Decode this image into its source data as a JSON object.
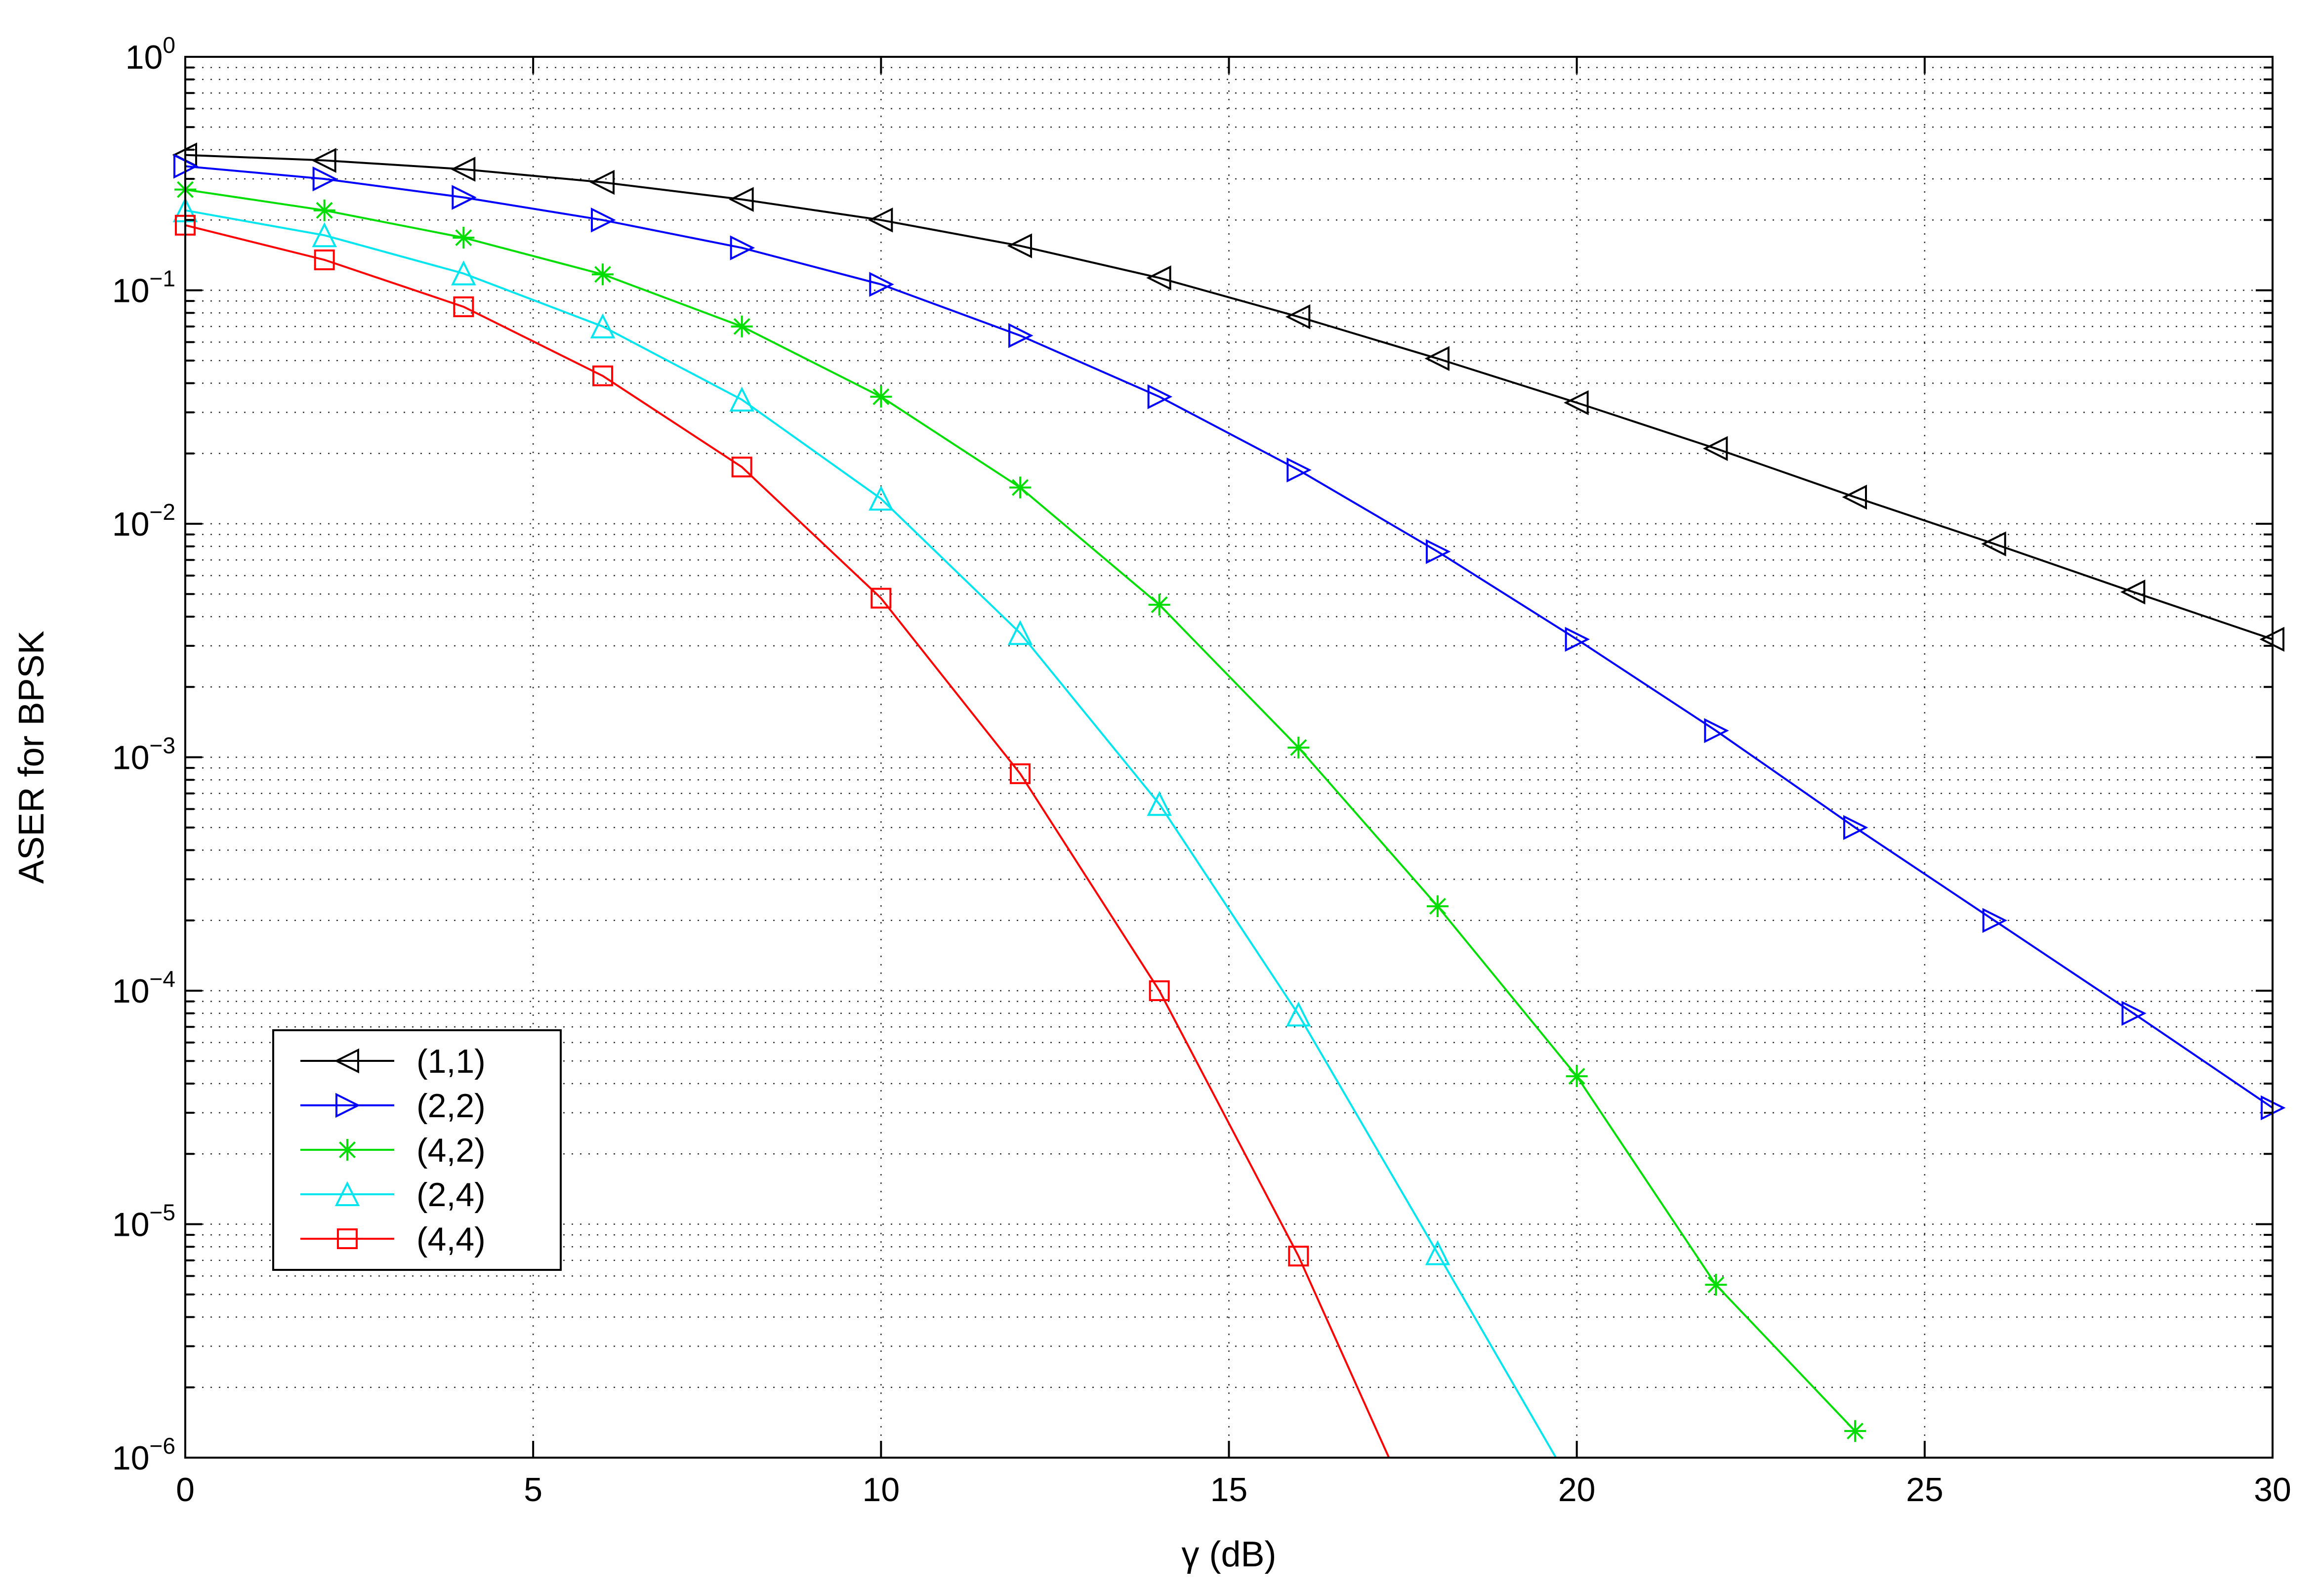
{
  "chart_data": {
    "type": "line",
    "xlabel": "γ (dB)",
    "ylabel": "ASER for BPSK",
    "xlim": [
      0,
      30
    ],
    "ylim": [
      1e-06,
      1
    ],
    "yscale": "log",
    "grid": true,
    "legend_position": "bottom-left",
    "x_ticks": [
      0,
      5,
      10,
      15,
      20,
      25,
      30
    ],
    "x_tick_labels": [
      "0",
      "5",
      "10",
      "15",
      "20",
      "25",
      "30"
    ],
    "y_ticks": [
      {
        "base": "10",
        "exp": "0"
      },
      {
        "base": "10",
        "exp": "−1"
      },
      {
        "base": "10",
        "exp": "−2"
      },
      {
        "base": "10",
        "exp": "−3"
      },
      {
        "base": "10",
        "exp": "−4"
      },
      {
        "base": "10",
        "exp": "−5"
      },
      {
        "base": "10",
        "exp": "−6"
      }
    ],
    "series": [
      {
        "name": "(1,1)",
        "color": "#000000",
        "marker": "triangle-left",
        "x": [
          0,
          2,
          4,
          6,
          8,
          10,
          12,
          14,
          16,
          18,
          20,
          22,
          24,
          26,
          28,
          30
        ],
        "y": [
          0.38,
          0.36,
          0.33,
          0.29,
          0.245,
          0.2,
          0.155,
          0.113,
          0.077,
          0.051,
          0.033,
          0.021,
          0.013,
          0.0082,
          0.0051,
          0.0032
        ]
      },
      {
        "name": "(2,2)",
        "color": "#0000ff",
        "marker": "triangle-right",
        "x": [
          0,
          2,
          4,
          6,
          8,
          10,
          12,
          14,
          16,
          18,
          20,
          22,
          24,
          26,
          28,
          30
        ],
        "y": [
          0.34,
          0.3,
          0.25,
          0.2,
          0.152,
          0.106,
          0.064,
          0.035,
          0.017,
          0.0076,
          0.0032,
          0.0013,
          0.0005,
          0.0002,
          8e-05,
          3.15e-05
        ]
      },
      {
        "name": "(4,2)",
        "color": "#00dd00",
        "marker": "asterisk",
        "x": [
          0,
          2,
          4,
          6,
          8,
          10,
          12,
          14,
          16,
          18,
          20,
          22,
          24
        ],
        "y": [
          0.27,
          0.22,
          0.168,
          0.117,
          0.07,
          0.035,
          0.0143,
          0.0045,
          0.0011,
          0.00023,
          4.3e-05,
          5.5e-06,
          1.3e-06
        ]
      },
      {
        "name": "(2,4)",
        "color": "#00e5ee",
        "marker": "triangle-up",
        "x": [
          0,
          2,
          4,
          6,
          8,
          10,
          12,
          14,
          16,
          18,
          19.7
        ],
        "y": [
          0.22,
          0.172,
          0.118,
          0.07,
          0.034,
          0.0128,
          0.0034,
          0.00063,
          7.9e-05,
          7.5e-06,
          1e-06
        ]
      },
      {
        "name": "(4,4)",
        "color": "#ff0000",
        "marker": "square",
        "x": [
          0,
          2,
          4,
          6,
          8,
          10,
          12,
          14,
          16,
          17.3
        ],
        "y": [
          0.19,
          0.135,
          0.085,
          0.043,
          0.0175,
          0.0048,
          0.00085,
          0.0001,
          7.3e-06,
          1e-06
        ]
      }
    ]
  }
}
